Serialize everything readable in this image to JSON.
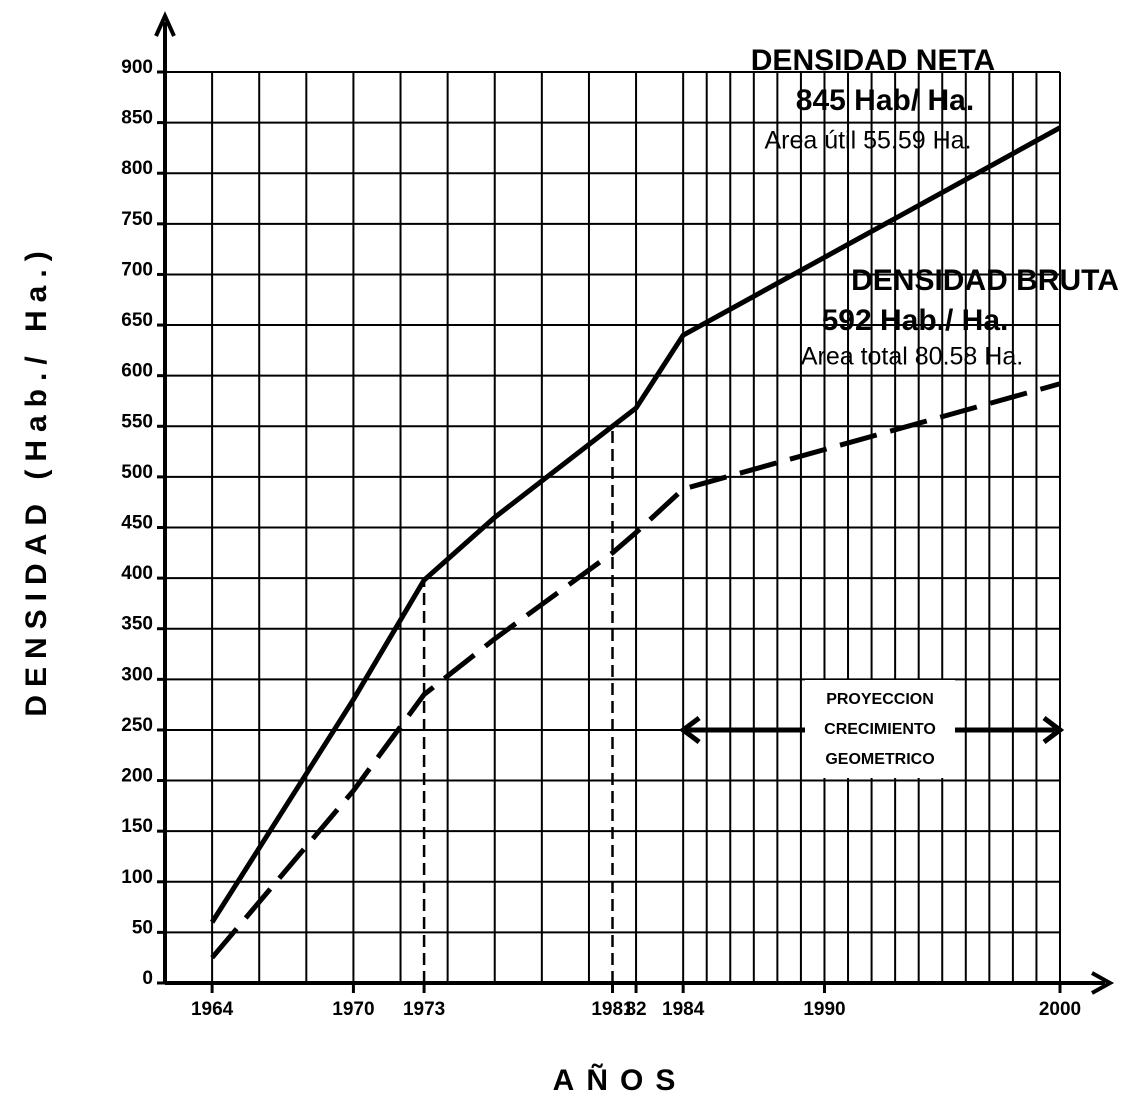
{
  "chart_data": {
    "type": "line",
    "y_label": "DENSIDAD (Hab./ Ha.)",
    "x_label": "AÑOS",
    "xlim": [
      1962,
      2000
    ],
    "ylim": [
      0,
      900
    ],
    "xticks": [
      1964,
      1970,
      1973,
      1981,
      {
        "value": 1982,
        "label": "82"
      },
      1984,
      1990,
      2000
    ],
    "yticks": [
      0,
      50,
      100,
      150,
      200,
      250,
      300,
      350,
      400,
      450,
      500,
      550,
      600,
      650,
      700,
      750,
      800,
      850,
      900
    ],
    "xgrid": [
      1964,
      1966,
      1968,
      1970,
      1972,
      1974,
      1976,
      1978,
      1980,
      1982,
      1984,
      1985,
      1986,
      1987,
      1988,
      1989,
      1990,
      1991,
      1992,
      1993,
      1994,
      1995,
      1996,
      1997,
      1998,
      1999,
      2000
    ],
    "grid": true,
    "x": [
      1964,
      1970,
      1973,
      1976,
      1981,
      1982,
      1984,
      2000
    ],
    "series": [
      {
        "name": "DENSIDAD NETA",
        "color": "#000000",
        "dash": "solid",
        "values": [
          60,
          280,
          398,
          460,
          550,
          568,
          640,
          845
        ]
      },
      {
        "name": "DENSIDAD BRUTA",
        "color": "#000000",
        "dash": "dashed",
        "values": [
          25,
          190,
          285,
          340,
          425,
          445,
          488,
          592
        ]
      }
    ],
    "annotations": [
      "845 Hab/ Ha.",
      "Area útil 55.59 Ha.",
      "592 Hab./ Ha.",
      "Area total 80.58 Ha.",
      "PROYECCION",
      "CRECIMIENTO",
      "GEOMETRICO"
    ]
  }
}
